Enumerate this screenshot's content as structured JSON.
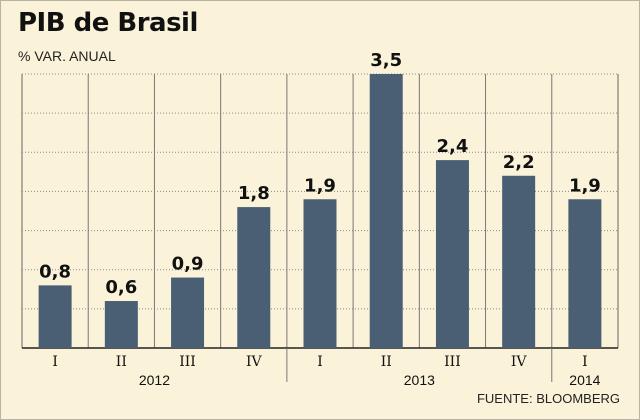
{
  "header": {
    "title": "PIB de Brasil",
    "subtitle": "% VAR. ANUAL"
  },
  "footer": {
    "source": "FUENTE: BLOOMBERG"
  },
  "colors": {
    "bar": "#4a5f73",
    "background": "#fbf3d9",
    "grid": "#8a8a8a"
  },
  "chart_data": {
    "type": "bar",
    "title": "PIB de Brasil",
    "ylabel": "% VAR. ANUAL",
    "xlabel": "",
    "categories": [
      "I",
      "II",
      "III",
      "IV",
      "I",
      "II",
      "III",
      "IV",
      "I"
    ],
    "groups": [
      {
        "label": "2012",
        "count": 4
      },
      {
        "label": "2013",
        "count": 4
      },
      {
        "label": "2014",
        "count": 1
      }
    ],
    "values": [
      0.8,
      0.6,
      0.9,
      1.8,
      1.9,
      3.5,
      2.4,
      2.2,
      1.9
    ],
    "value_labels": [
      "0,8",
      "0,6",
      "0,9",
      "1,8",
      "1,9",
      "3,5",
      "2,4",
      "2,2",
      "1,9"
    ],
    "ylim": [
      0,
      3.5
    ],
    "grid": true
  }
}
